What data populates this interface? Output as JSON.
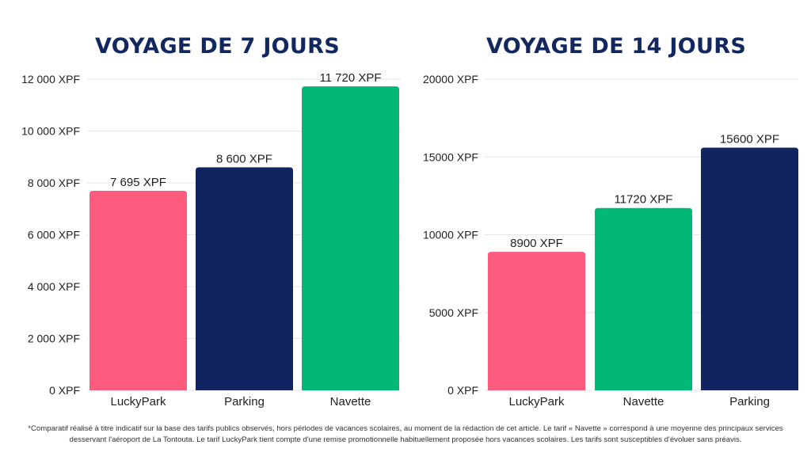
{
  "colors": {
    "pink": "#fc5b7e",
    "navy": "#0f2461",
    "green": "#02b876",
    "title": "#12275e",
    "grid": "#e6e6e6"
  },
  "chart_data": [
    {
      "type": "bar",
      "title": "VOYAGE DE 7 JOURS",
      "categories": [
        "LuckyPark",
        "Parking",
        "Navette"
      ],
      "values": [
        7695,
        8600,
        11720
      ],
      "value_labels": [
        "7 695 XPF",
        "8 600 XPF",
        "11 720 XPF"
      ],
      "bar_colors": [
        "#fc5b7e",
        "#0f2461",
        "#02b876"
      ],
      "ylim": [
        0,
        12000
      ],
      "y_ticks": [
        0,
        2000,
        4000,
        6000,
        8000,
        10000,
        12000
      ],
      "y_tick_labels": [
        "0 XPF",
        "2 000 XPF",
        "4 000 XPF",
        "6 000 XPF",
        "8 000 XPF",
        "10 000 XPF",
        "12 000 XPF"
      ],
      "grid": true,
      "xlabel": "",
      "ylabel": ""
    },
    {
      "type": "bar",
      "title": "VOYAGE DE 14 JOURS",
      "categories": [
        "LuckyPark",
        "Navette",
        "Parking"
      ],
      "values": [
        8900,
        11720,
        15600
      ],
      "value_labels": [
        "8900 XPF",
        "11720 XPF",
        "15600 XPF"
      ],
      "bar_colors": [
        "#fc5b7e",
        "#02b876",
        "#0f2461"
      ],
      "ylim": [
        0,
        20000
      ],
      "y_ticks": [
        0,
        5000,
        10000,
        15000,
        20000
      ],
      "y_tick_labels": [
        "0 XPF",
        "5000 XPF",
        "10000 XPF",
        "15000 XPF",
        "20000 XPF"
      ],
      "grid": true,
      "xlabel": "",
      "ylabel": ""
    }
  ],
  "footnote": {
    "line1": "*Comparatif réalisé à titre indicatif sur la base des tarifs publics observés, hors périodes de vacances scolaires, au moment de la rédaction de cet article. Le tarif « Navette » correspond à une moyenne des principaux services",
    "line2": "desservant l'aéroport de La Tontouta. Le tarif LuckyPark tient compte d'une remise promotionnelle habituellement proposée hors vacances scolaires. Les tarifs sont susceptibles d'évoluer sans préavis."
  }
}
